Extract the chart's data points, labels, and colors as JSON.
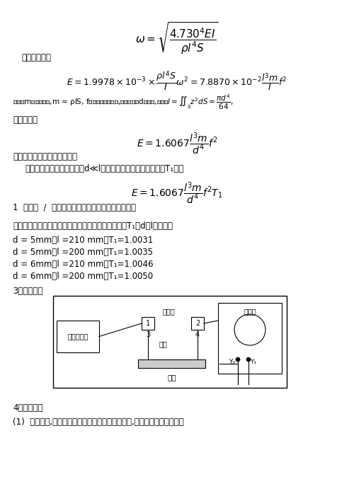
{
  "bg_color": "#ffffff",
  "title_formula": "$\\omega = \\sqrt{\\dfrac{4.730^4 EI}{\\rho l^4 S}}$",
  "line1": "解出弹性模量",
  "formula1": "$E = 1.9978 \\times 10^{-3} \\times \\dfrac{\\rho l^4 S}{I} \\omega^2 = 7.8870 \\times 10^{-2} \\dfrac{l^3 m}{I} f^2$",
  "line2": "上式中m为棒的质量,m = ρlS, f为圆棒的基振频率,对于直径为d的圆棒,惯量矩$I = \\iint_S z^2 dS = \\dfrac{\\pi d^4}{64}$,",
  "line3": "带入上式得",
  "formula2": "$E = 1.6067 \\dfrac{l^3 m}{d^4} f^2$",
  "line4": "这就是本实验用的计算公式。",
  "line5": "    实际测量时，由于不能满足d≪l，此时上式应乘上一修正系数T₁，即",
  "formula3": "$E = 1.6067 \\dfrac{l^3 m}{d^4} f^2 T_1$",
  "line6": "1  可根据  /  的不同数值和材料的泊松比查表得到。",
  "line7": "我们试验中用到了四种几何尺寸的黄铜、紫铜圆杆，T₁随d、l变化如下",
  "data_lines": [
    "d = 5mm，l =210 mm，T₁=1.0031",
    "d = 5mm，l =200 mm，T₁=1.0035",
    "d = 6mm，l =210 mm，T₁=1.0046",
    "d = 6mm，l =200 mm，T₁=1.0050"
  ],
  "section3": "3．实验装置",
  "section4": "4．实验任务",
  "task1": "(1)  连接线路,阅读信号发生器与示波器的有关资料,学习调节和使用方法。"
}
